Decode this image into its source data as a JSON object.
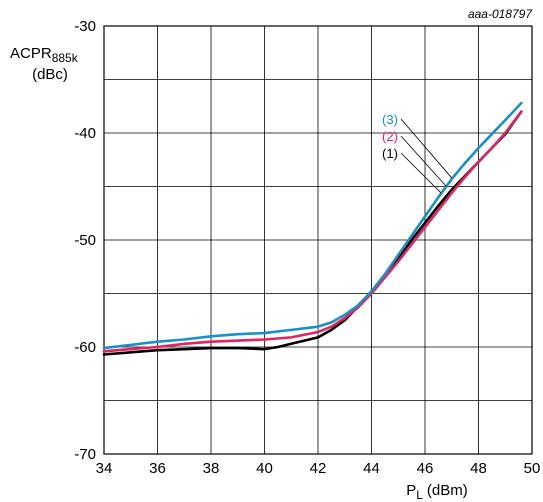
{
  "chart_data": {
    "type": "line",
    "figure_code": "aaa-018797",
    "ylabel": {
      "main": "ACPR",
      "subscript": "885k",
      "unit": "(dBc)"
    },
    "xlabel": {
      "main": "P",
      "subscript": "L",
      "unit": "(dBm)"
    },
    "xlim": [
      34,
      50
    ],
    "ylim": [
      -70,
      -30
    ],
    "x_ticks": [
      34,
      36,
      38,
      40,
      42,
      44,
      46,
      48,
      50
    ],
    "y_ticks_labeled": [
      -30,
      -40,
      -50,
      -60,
      -70
    ],
    "y_grid_step": 5,
    "grid": true,
    "series": [
      {
        "name": "(1)",
        "color": "#000000",
        "points": [
          [
            34,
            -60.7
          ],
          [
            35,
            -60.5
          ],
          [
            36,
            -60.3
          ],
          [
            37,
            -60.2
          ],
          [
            38,
            -60.1
          ],
          [
            39,
            -60.1
          ],
          [
            40,
            -60.2
          ],
          [
            40.5,
            -60.0
          ],
          [
            41,
            -59.7
          ],
          [
            42,
            -59.1
          ],
          [
            42.5,
            -58.4
          ],
          [
            43,
            -57.5
          ],
          [
            43.5,
            -56.2
          ],
          [
            44,
            -54.8
          ],
          [
            44.5,
            -53.3
          ],
          [
            45,
            -51.7
          ],
          [
            45.5,
            -50.0
          ],
          [
            46,
            -48.4
          ],
          [
            46.5,
            -46.8
          ],
          [
            47,
            -45.3
          ],
          [
            47.5,
            -44.0
          ],
          [
            48,
            -42.7
          ],
          [
            48.5,
            -41.4
          ],
          [
            49,
            -40.1
          ],
          [
            49.6,
            -38.0
          ]
        ]
      },
      {
        "name": "(2)",
        "color": "#e0245e",
        "points": [
          [
            34,
            -60.4
          ],
          [
            35,
            -60.2
          ],
          [
            36,
            -60.0
          ],
          [
            37,
            -59.7
          ],
          [
            38,
            -59.5
          ],
          [
            39,
            -59.4
          ],
          [
            40,
            -59.3
          ],
          [
            41,
            -59.1
          ],
          [
            42,
            -58.6
          ],
          [
            42.5,
            -58.1
          ],
          [
            43,
            -57.3
          ],
          [
            43.5,
            -56.3
          ],
          [
            44,
            -55.0
          ],
          [
            44.5,
            -53.5
          ],
          [
            45,
            -52.0
          ],
          [
            45.5,
            -50.4
          ],
          [
            46,
            -48.8
          ],
          [
            46.5,
            -47.2
          ],
          [
            47,
            -45.6
          ],
          [
            47.5,
            -44.1
          ],
          [
            48,
            -42.7
          ],
          [
            48.5,
            -41.4
          ],
          [
            49,
            -40.0
          ],
          [
            49.6,
            -38.0
          ]
        ]
      },
      {
        "name": "(3)",
        "color": "#1a8fc9",
        "points": [
          [
            34,
            -60.1
          ],
          [
            35,
            -59.8
          ],
          [
            36,
            -59.5
          ],
          [
            37,
            -59.3
          ],
          [
            38,
            -59.0
          ],
          [
            39,
            -58.8
          ],
          [
            40,
            -58.7
          ],
          [
            41,
            -58.4
          ],
          [
            42,
            -58.1
          ],
          [
            42.5,
            -57.7
          ],
          [
            43,
            -57.0
          ],
          [
            43.5,
            -56.1
          ],
          [
            44,
            -54.8
          ],
          [
            44.5,
            -53.2
          ],
          [
            45,
            -51.4
          ],
          [
            45.5,
            -49.6
          ],
          [
            46,
            -47.8
          ],
          [
            46.5,
            -46.0
          ],
          [
            47,
            -44.3
          ],
          [
            47.5,
            -42.8
          ],
          [
            48,
            -41.4
          ],
          [
            48.5,
            -40.1
          ],
          [
            49,
            -38.8
          ],
          [
            49.6,
            -37.2
          ]
        ]
      }
    ],
    "annotations": [
      {
        "text": "(3)",
        "series": 2,
        "color": "#1a8fc9"
      },
      {
        "text": "(2)",
        "series": 1,
        "color": "#e0245e"
      },
      {
        "text": "(1)",
        "series": 0,
        "color": "#000000"
      }
    ]
  }
}
